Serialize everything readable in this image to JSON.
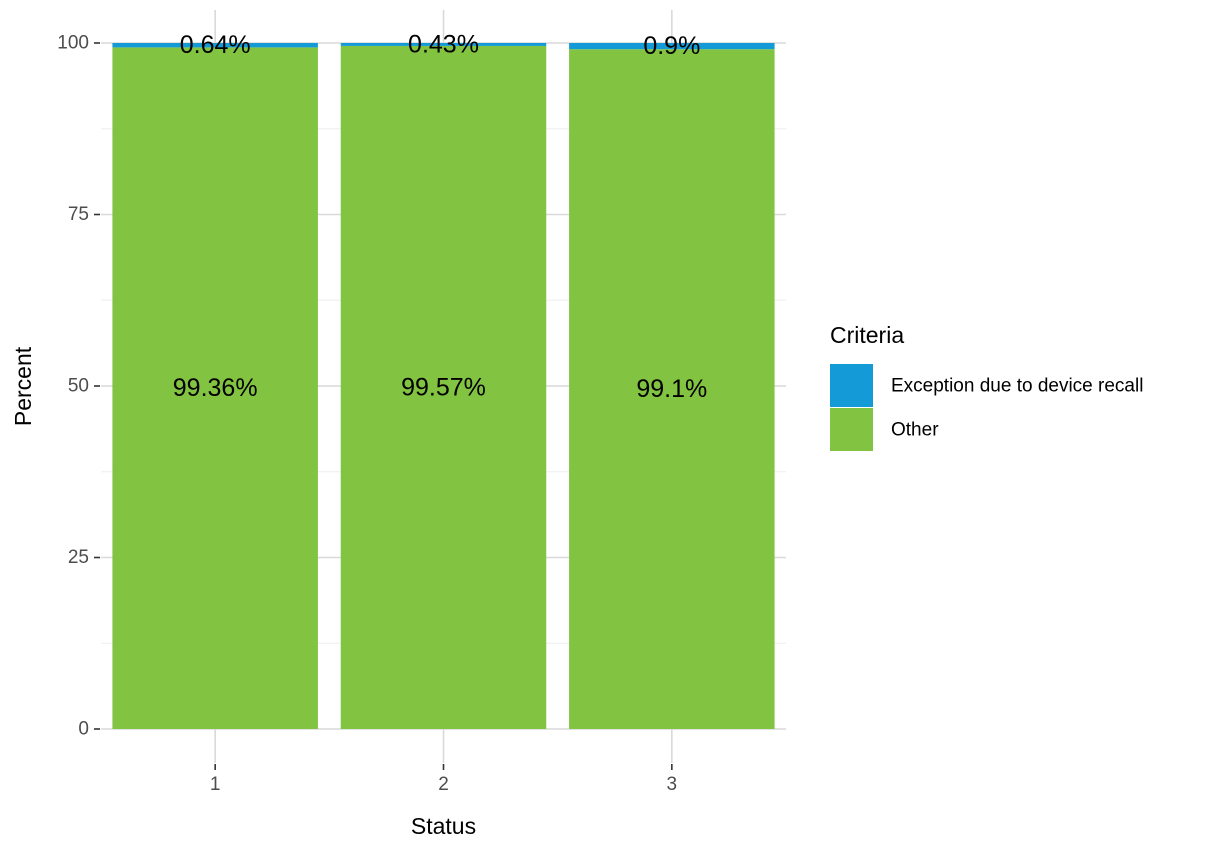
{
  "chart_data": {
    "type": "bar",
    "stacked": true,
    "categories": [
      "1",
      "2",
      "3"
    ],
    "series": [
      {
        "name": "Other",
        "color": "#82C341",
        "values": [
          99.36,
          99.57,
          99.1
        ],
        "labels": [
          "99.36%",
          "99.57%",
          "99.1%"
        ]
      },
      {
        "name": "Exception due to device recall",
        "color": "#149BD7",
        "values": [
          0.64,
          0.43,
          0.9
        ],
        "labels": [
          "0.64%",
          "0.43%",
          "0.9%"
        ]
      }
    ],
    "xlabel": "Status",
    "ylabel": "Percent",
    "ylim": [
      0,
      100
    ],
    "yticks": [
      0,
      25,
      50,
      75,
      100
    ],
    "grid": true,
    "legend": {
      "title": "Criteria",
      "placement": "right",
      "entries": [
        {
          "label": "Exception due to device recall",
          "color": "#149BD7"
        },
        {
          "label": "Other",
          "color": "#82C341"
        }
      ]
    }
  }
}
